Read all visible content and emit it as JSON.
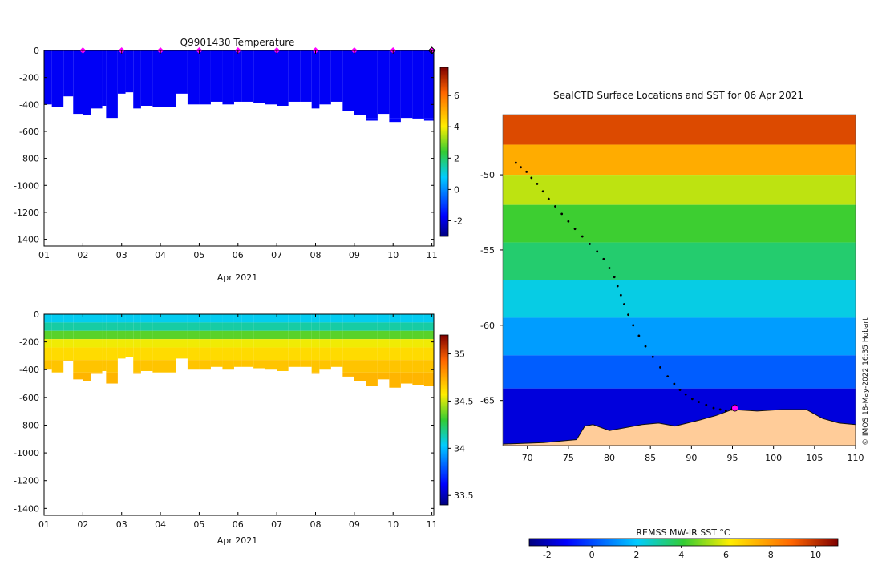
{
  "chart_data": [
    {
      "type": "heatmap",
      "title": "Q9901430  Temperature",
      "xlabel": "Apr 2021",
      "x_ticks": [
        "01",
        "02",
        "03",
        "04",
        "05",
        "06",
        "07",
        "08",
        "09",
        "10",
        "11"
      ],
      "xlim": [
        1,
        11.05
      ],
      "ylim": [
        -1450,
        0
      ],
      "y_ticks": [
        0,
        -200,
        -400,
        -600,
        -800,
        -1000,
        -1200,
        -1400
      ],
      "colorbar": {
        "min": -3,
        "max": 7.8,
        "ticks": [
          -2,
          0,
          2,
          4,
          6
        ]
      },
      "surface_marker_days": [
        2,
        3,
        4,
        5,
        6,
        7,
        8,
        9,
        10,
        11
      ],
      "profile_day": [
        1.0,
        1.2,
        1.5,
        1.75,
        2.0,
        2.2,
        2.5,
        2.6,
        2.9,
        3.1,
        3.3,
        3.5,
        3.8,
        4.1,
        4.4,
        4.7,
        5.0,
        5.3,
        5.6,
        5.9,
        6.1,
        6.4,
        6.7,
        7.0,
        7.3,
        7.6,
        7.9,
        8.1,
        8.4,
        8.7,
        9.0,
        9.3,
        9.6,
        9.9,
        10.2,
        10.5,
        10.8
      ],
      "profile_max_depth": [
        400,
        420,
        340,
        470,
        480,
        430,
        410,
        500,
        320,
        310,
        430,
        410,
        420,
        420,
        320,
        400,
        400,
        380,
        400,
        380,
        380,
        390,
        400,
        410,
        380,
        380,
        430,
        400,
        380,
        450,
        480,
        520,
        470,
        530,
        500,
        510,
        520
      ],
      "layers": [
        {
          "depth": 0,
          "temp": -1.8
        },
        {
          "depth": 500,
          "temp": -1.7
        }
      ]
    },
    {
      "type": "heatmap",
      "title": "",
      "xlabel": "Apr 2021",
      "x_ticks": [
        "01",
        "02",
        "03",
        "04",
        "05",
        "06",
        "07",
        "08",
        "09",
        "10",
        "11"
      ],
      "xlim": [
        1,
        11.05
      ],
      "ylim": [
        -1450,
        0
      ],
      "y_ticks": [
        0,
        -200,
        -400,
        -600,
        -800,
        -1000,
        -1200,
        -1400
      ],
      "colorbar": {
        "min": 33.4,
        "max": 35.2,
        "ticks": [
          33.5,
          34,
          34.5,
          35
        ]
      },
      "profile_day": [
        1.0,
        1.2,
        1.5,
        1.75,
        2.0,
        2.2,
        2.5,
        2.6,
        2.9,
        3.1,
        3.3,
        3.5,
        3.8,
        4.1,
        4.4,
        4.7,
        5.0,
        5.3,
        5.6,
        5.9,
        6.1,
        6.4,
        6.7,
        7.0,
        7.3,
        7.6,
        7.9,
        8.1,
        8.4,
        8.7,
        9.0,
        9.3,
        9.6,
        9.9,
        10.2,
        10.5,
        10.8
      ],
      "profile_max_depth": [
        400,
        420,
        340,
        470,
        480,
        430,
        410,
        500,
        320,
        310,
        430,
        410,
        420,
        420,
        320,
        400,
        400,
        380,
        400,
        380,
        380,
        390,
        400,
        410,
        380,
        380,
        430,
        400,
        380,
        450,
        480,
        520,
        470,
        530,
        500,
        510,
        520
      ],
      "layers": [
        {
          "depth": 0,
          "value": 34.05
        },
        {
          "depth": 60,
          "value": 34.15
        },
        {
          "depth": 120,
          "value": 34.35
        },
        {
          "depth": 180,
          "value": 34.55
        },
        {
          "depth": 240,
          "value": 34.62
        },
        {
          "depth": 330,
          "value": 34.68
        },
        {
          "depth": 420,
          "value": 34.72
        }
      ]
    },
    {
      "type": "heatmap",
      "title": "SealCTD Surface Locations and SST for 06 Apr 2021",
      "xlabel": "",
      "ylabel": "",
      "xlim": [
        67,
        110
      ],
      "ylim": [
        -68,
        -46
      ],
      "x_ticks": [
        70,
        75,
        80,
        85,
        90,
        95,
        100,
        105,
        110
      ],
      "y_ticks": [
        -50,
        -55,
        -60,
        -65
      ],
      "colorbar": {
        "label": "REMSS MW-IR SST °C",
        "min": -2.8,
        "max": 11,
        "ticks": [
          -2,
          0,
          2,
          4,
          6,
          8,
          10
        ]
      },
      "credit": "© IMOS 18-May-2022 16:35 Hobart",
      "sst_bands": [
        {
          "lat_north": -46,
          "lat_south": -48,
          "sst": 9.5
        },
        {
          "lat_north": -48,
          "lat_south": -50,
          "sst": 7.5
        },
        {
          "lat_north": -50,
          "lat_south": -52,
          "sst": 5.5
        },
        {
          "lat_north": -52,
          "lat_south": -54.5,
          "sst": 4.2
        },
        {
          "lat_north": -54.5,
          "lat_south": -57,
          "sst": 3.5
        },
        {
          "lat_north": -57,
          "lat_south": -59.5,
          "sst": 2.3
        },
        {
          "lat_north": -59.5,
          "lat_south": -62,
          "sst": 1.3
        },
        {
          "lat_north": -62,
          "lat_south": -64.2,
          "sst": 0.3
        },
        {
          "lat_north": -64.2,
          "lat_south": -68,
          "sst": -1.6
        }
      ],
      "coast": [
        [
          67,
          -67.9
        ],
        [
          72,
          -67.8
        ],
        [
          76,
          -67.6
        ],
        [
          77,
          -66.7
        ],
        [
          78,
          -66.6
        ],
        [
          80,
          -67.0
        ],
        [
          82,
          -66.8
        ],
        [
          84,
          -66.6
        ],
        [
          86,
          -66.5
        ],
        [
          88,
          -66.7
        ],
        [
          91,
          -66.3
        ],
        [
          93,
          -66.0
        ],
        [
          95,
          -65.6
        ],
        [
          98,
          -65.7
        ],
        [
          101,
          -65.6
        ],
        [
          104,
          -65.6
        ],
        [
          106,
          -66.2
        ],
        [
          108,
          -66.5
        ],
        [
          110,
          -66.6
        ]
      ],
      "track_lon": [
        68.6,
        69.2,
        69.9,
        70.5,
        71.2,
        71.9,
        72.6,
        73.4,
        74.2,
        75.0,
        75.8,
        76.7,
        77.6,
        78.5,
        79.3,
        80.0,
        80.6,
        81.0,
        81.4,
        81.8,
        82.3,
        82.9,
        83.6,
        84.4,
        85.3,
        86.2,
        87.1,
        87.9,
        88.6,
        89.3,
        90.1,
        90.9,
        91.8,
        92.7,
        93.5,
        94.2,
        94.9,
        95.3
      ],
      "track_lat": [
        -49.2,
        -49.5,
        -49.8,
        -50.2,
        -50.6,
        -51.1,
        -51.6,
        -52.1,
        -52.6,
        -53.1,
        -53.6,
        -54.1,
        -54.6,
        -55.1,
        -55.6,
        -56.2,
        -56.8,
        -57.4,
        -58.0,
        -58.6,
        -59.3,
        -60.0,
        -60.7,
        -61.4,
        -62.1,
        -62.8,
        -63.4,
        -63.9,
        -64.3,
        -64.6,
        -64.9,
        -65.1,
        -65.3,
        -65.5,
        -65.6,
        -65.7,
        -65.6,
        -65.5
      ],
      "last_position": {
        "lon": 95.3,
        "lat": -65.5
      }
    }
  ]
}
